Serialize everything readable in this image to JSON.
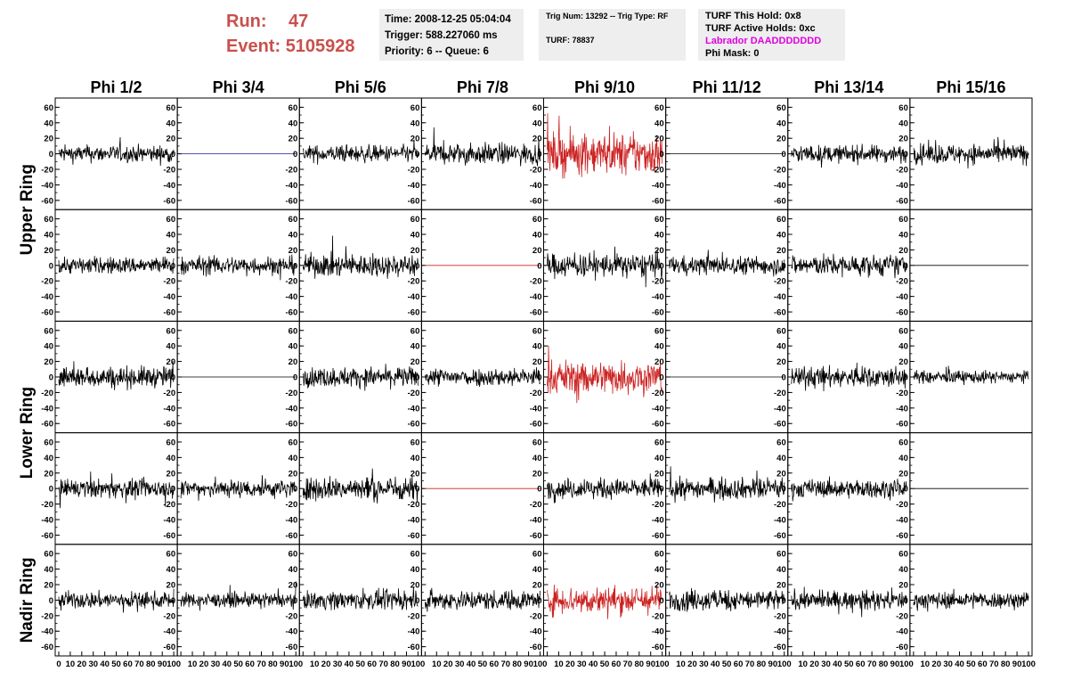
{
  "header": {
    "run_label": "Run:",
    "run_value": "47",
    "event_label": "Event:",
    "event_value": "5105928",
    "time_line": "Time: 2008-12-25 05:04:04",
    "trigger_line": "Trigger: 588.227060 ms",
    "priority_line": "Priority: 6 -- Queue: 6",
    "trig_line": "Trig Num: 13292 -- Trig Type: RF",
    "turf_line": "TURF: 78837",
    "turf_hold_line": "TURF This Hold: 0x8",
    "turf_active_line": "TURF Active Holds: 0xc",
    "labrador_line": "Labrador DAADDDDDDD",
    "phi_mask_line": "Phi Mask: 0",
    "labrador_color": "#e000e0",
    "run_color": "#c9504c"
  },
  "chart_data": {
    "type": "line",
    "columns": [
      "Phi 1/2",
      "Phi 3/4",
      "Phi 5/6",
      "Phi 7/8",
      "Phi 9/10",
      "Phi 11/12",
      "Phi 13/14",
      "Phi 15/16"
    ],
    "row_groups": [
      {
        "label": "Upper Ring",
        "rows": [
          0,
          1
        ]
      },
      {
        "label": "Lower Ring",
        "rows": [
          2,
          3
        ]
      },
      {
        "label": "Nadir Ring",
        "rows": [
          4
        ]
      }
    ],
    "xlim": [
      0,
      100
    ],
    "ylim": [
      -65,
      65
    ],
    "y_ticks": [
      "-60",
      "-40",
      "-20",
      "0",
      "20",
      "40",
      "60"
    ],
    "x_ticks": [
      "0",
      "10",
      "20",
      "30",
      "40",
      "50",
      "60",
      "70",
      "80",
      "90",
      "100"
    ],
    "colors": {
      "normal": "#000000",
      "triggered": "#cc2222",
      "flat_blue": "#1a1aa0",
      "flat_red": "#cc2222"
    },
    "panels": [
      {
        "row": 0,
        "col": 0,
        "state": "noise",
        "amplitude": 24
      },
      {
        "row": 0,
        "col": 1,
        "state": "flat",
        "color": "flat_blue"
      },
      {
        "row": 0,
        "col": 2,
        "state": "noise",
        "amplitude": 24
      },
      {
        "row": 0,
        "col": 3,
        "state": "noise",
        "amplitude": 30
      },
      {
        "row": 0,
        "col": 4,
        "state": "triggered",
        "amplitude": 58
      },
      {
        "row": 0,
        "col": 5,
        "state": "flat",
        "color": "normal"
      },
      {
        "row": 0,
        "col": 6,
        "state": "noise",
        "amplitude": 24
      },
      {
        "row": 0,
        "col": 7,
        "state": "noise",
        "amplitude": 28
      },
      {
        "row": 1,
        "col": 0,
        "state": "noise",
        "amplitude": 24
      },
      {
        "row": 1,
        "col": 1,
        "state": "noise",
        "amplitude": 26
      },
      {
        "row": 1,
        "col": 2,
        "state": "noise",
        "amplitude": 32
      },
      {
        "row": 1,
        "col": 3,
        "state": "flat",
        "color": "flat_red"
      },
      {
        "row": 1,
        "col": 4,
        "state": "noise",
        "amplitude": 34
      },
      {
        "row": 1,
        "col": 5,
        "state": "noise",
        "amplitude": 26
      },
      {
        "row": 1,
        "col": 6,
        "state": "noise",
        "amplitude": 30
      },
      {
        "row": 1,
        "col": 7,
        "state": "flat",
        "color": "normal"
      },
      {
        "row": 2,
        "col": 0,
        "state": "noise",
        "amplitude": 30
      },
      {
        "row": 2,
        "col": 1,
        "state": "flat",
        "color": "normal"
      },
      {
        "row": 2,
        "col": 2,
        "state": "noise",
        "amplitude": 28
      },
      {
        "row": 2,
        "col": 3,
        "state": "noise",
        "amplitude": 26
      },
      {
        "row": 2,
        "col": 4,
        "state": "triggered",
        "amplitude": 48
      },
      {
        "row": 2,
        "col": 5,
        "state": "flat",
        "color": "normal"
      },
      {
        "row": 2,
        "col": 6,
        "state": "noise",
        "amplitude": 30
      },
      {
        "row": 2,
        "col": 7,
        "state": "noise",
        "amplitude": 18
      },
      {
        "row": 3,
        "col": 0,
        "state": "noise",
        "amplitude": 26
      },
      {
        "row": 3,
        "col": 1,
        "state": "noise",
        "amplitude": 26
      },
      {
        "row": 3,
        "col": 2,
        "state": "noise",
        "amplitude": 34
      },
      {
        "row": 3,
        "col": 3,
        "state": "flat",
        "color": "flat_red"
      },
      {
        "row": 3,
        "col": 4,
        "state": "noise",
        "amplitude": 28
      },
      {
        "row": 3,
        "col": 5,
        "state": "noise",
        "amplitude": 30
      },
      {
        "row": 3,
        "col": 6,
        "state": "noise",
        "amplitude": 26
      },
      {
        "row": 3,
        "col": 7,
        "state": "flat",
        "color": "normal"
      },
      {
        "row": 4,
        "col": 0,
        "state": "noise",
        "amplitude": 24
      },
      {
        "row": 4,
        "col": 1,
        "state": "noise",
        "amplitude": 20
      },
      {
        "row": 4,
        "col": 2,
        "state": "noise",
        "amplitude": 26
      },
      {
        "row": 4,
        "col": 3,
        "state": "noise",
        "amplitude": 28
      },
      {
        "row": 4,
        "col": 4,
        "state": "triggered",
        "amplitude": 40
      },
      {
        "row": 4,
        "col": 5,
        "state": "noise",
        "amplitude": 30
      },
      {
        "row": 4,
        "col": 6,
        "state": "noise",
        "amplitude": 26
      },
      {
        "row": 4,
        "col": 7,
        "state": "noise",
        "amplitude": 24
      }
    ]
  }
}
